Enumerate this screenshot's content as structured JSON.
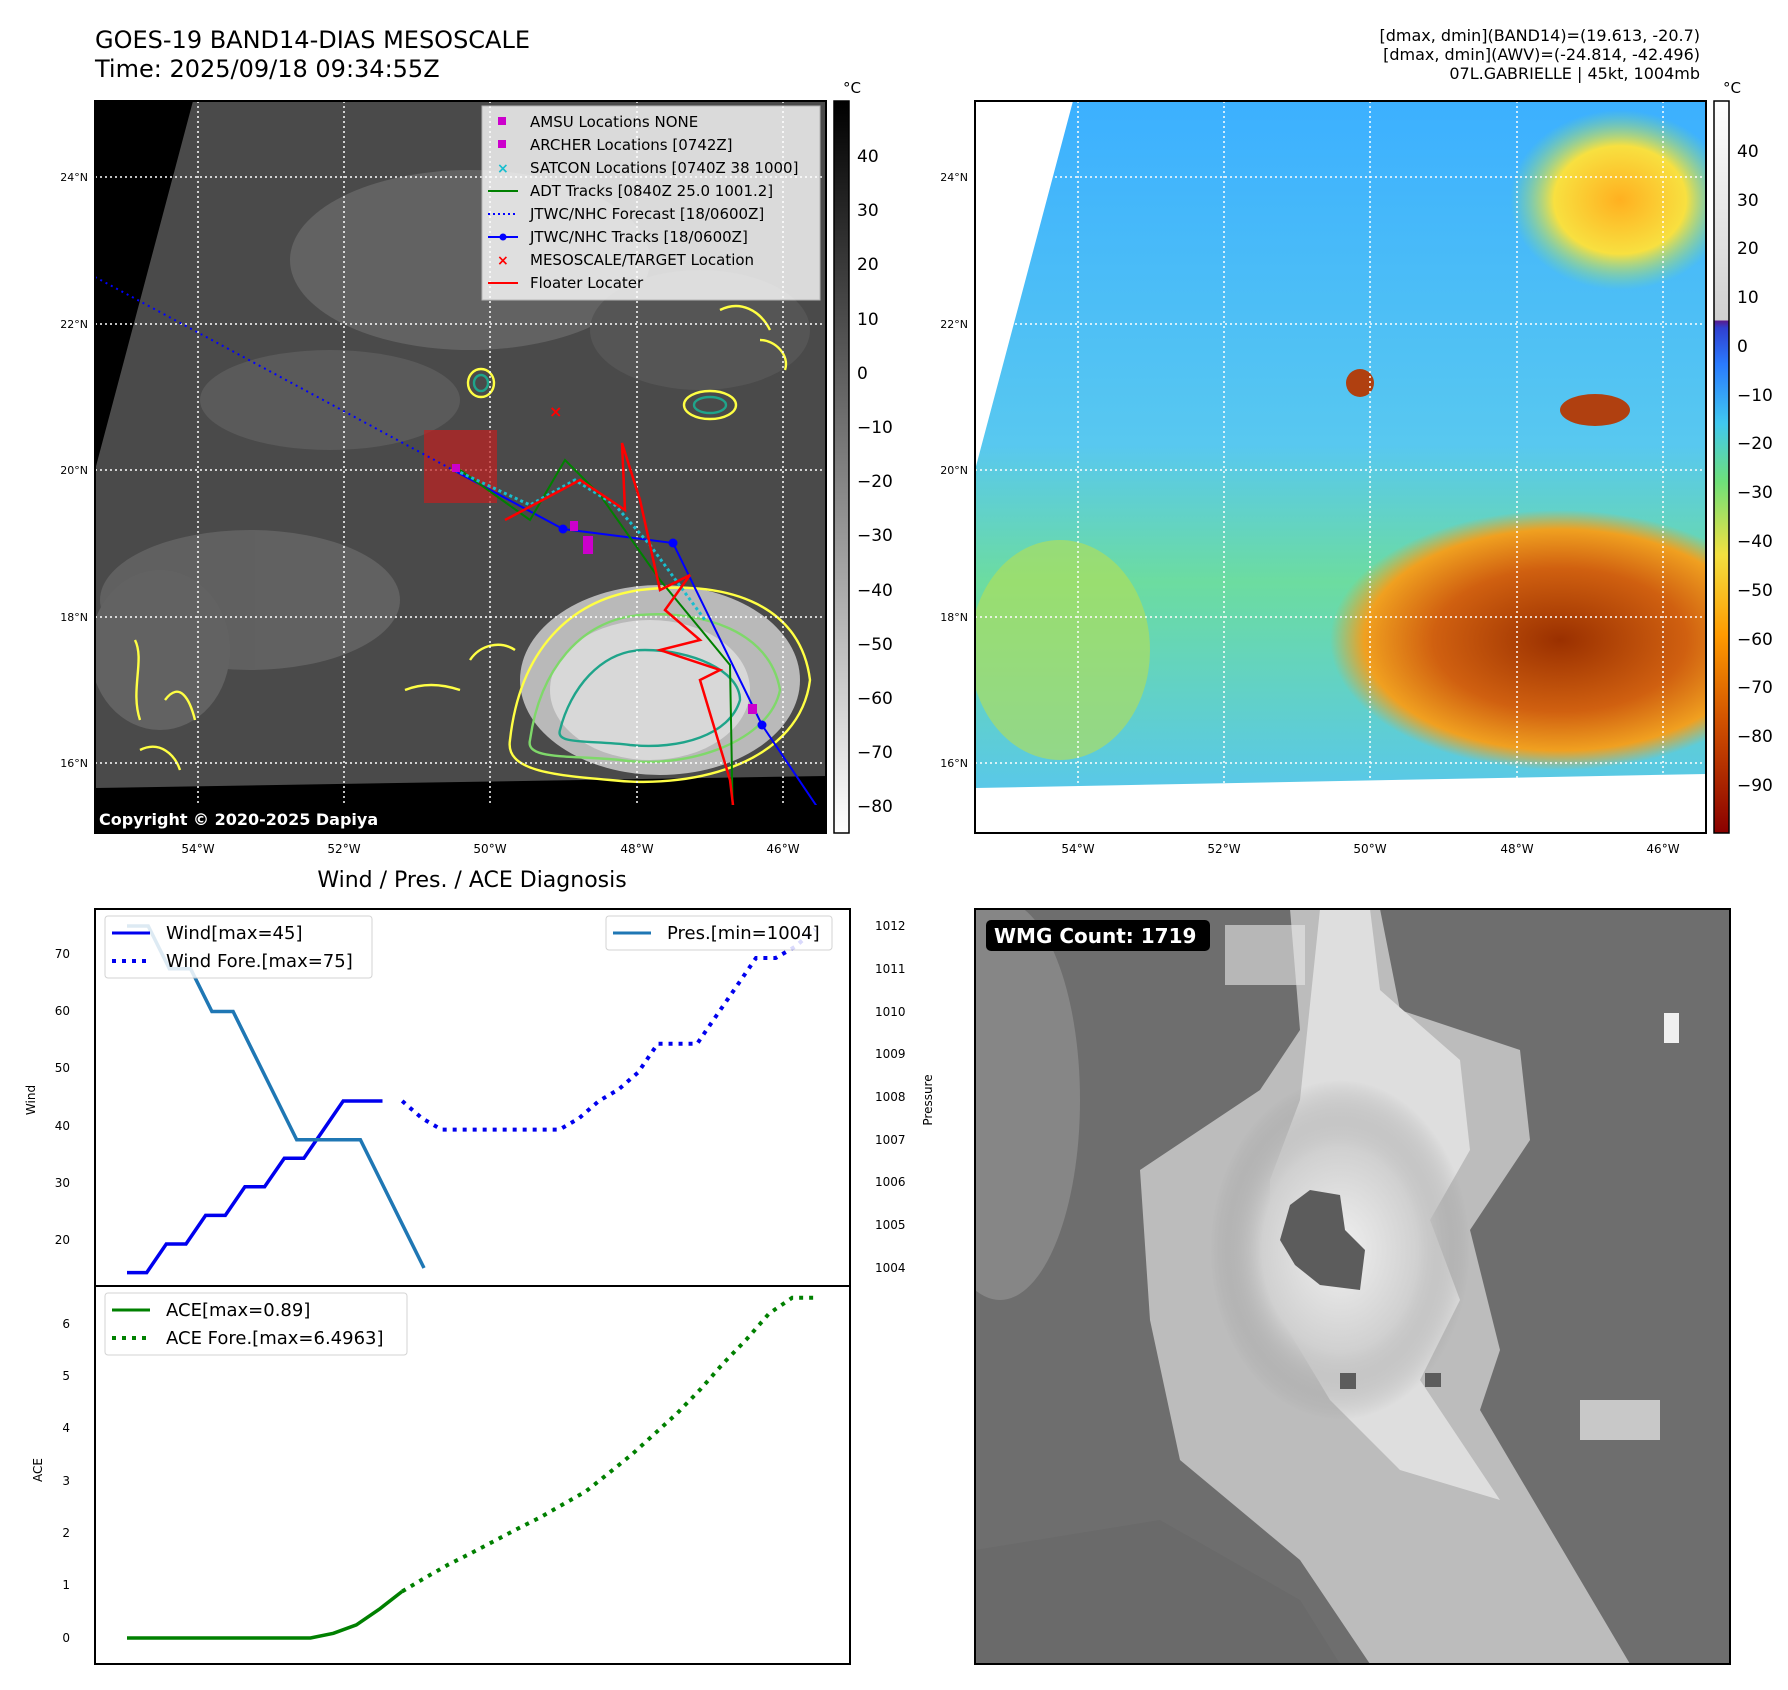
{
  "header": {
    "title_line1": "GOES-19 BAND14-DIAS MESOSCALE",
    "title_line2": "Time: 2025/09/18 09:34:55Z",
    "info_line1": "[dmax, dmin](BAND14)=(19.613, -20.7)",
    "info_line2": "[dmax, dmin](AWV)=(-24.814, -42.496)",
    "info_line3": "07L.GABRIELLE | 45kt, 1004mb"
  },
  "map_ir": {
    "copyright": "Copyright © 2020-2025 Dapiya",
    "lat_labels": [
      "24°N",
      "22°N",
      "20°N",
      "18°N",
      "16°N"
    ],
    "lon_labels": [
      "54°W",
      "52°W",
      "50°W",
      "48°W",
      "46°W"
    ],
    "colorbar_unit": "°C",
    "colorbar_ticks": [
      "40",
      "30",
      "20",
      "10",
      "0",
      "−10",
      "−20",
      "−30",
      "−40",
      "−50",
      "−60",
      "−70",
      "−80"
    ],
    "legend": [
      {
        "label": "AMSU Locations NONE",
        "color": "#cc00cc"
      },
      {
        "label": "ARCHER Locations [0742Z]",
        "color": "#cc00cc"
      },
      {
        "label": "SATCON Locations [0740Z 38 1000]",
        "color": "#17becf"
      },
      {
        "label": "ADT Tracks [0840Z 25.0 1001.2]",
        "color": "#008000"
      },
      {
        "label": "JTWC/NHC Forecast [18/0600Z]",
        "color": "#0000ff"
      },
      {
        "label": "JTWC/NHC Tracks [18/0600Z]",
        "color": "#0000ff"
      },
      {
        "label": "MESOSCALE/TARGET Location",
        "color": "#ff0000"
      },
      {
        "label": "Floater Locater",
        "color": "#ff0000"
      }
    ]
  },
  "map_wv": {
    "lat_labels": [
      "24°N",
      "22°N",
      "20°N",
      "18°N",
      "16°N"
    ],
    "lon_labels": [
      "54°W",
      "52°W",
      "50°W",
      "48°W",
      "46°W"
    ],
    "colorbar_unit": "°C",
    "colorbar_ticks": [
      "40",
      "30",
      "20",
      "10",
      "0",
      "−10",
      "−20",
      "−30",
      "−40",
      "−50",
      "−60",
      "−70",
      "−80",
      "−90"
    ]
  },
  "diagnosis": {
    "title": "Wind / Pres. / ACE Diagnosis",
    "wind_ylabel": "Wind",
    "pres_ylabel": "Pressure",
    "ace_ylabel": "ACE",
    "wind_ticks": [
      "70",
      "60",
      "50",
      "40",
      "30",
      "20"
    ],
    "pres_ticks": [
      "1012",
      "1011",
      "1010",
      "1009",
      "1008",
      "1007",
      "1006",
      "1005",
      "1004"
    ],
    "ace_ticks": [
      "6",
      "5",
      "4",
      "3",
      "2",
      "1",
      "0"
    ],
    "legend_wind": "Wind[max=45]",
    "legend_wind_fore": "Wind Fore.[max=75]",
    "legend_pres": "Pres.[min=1004]",
    "legend_ace": "ACE[max=0.89]",
    "legend_ace_fore": "ACE Fore.[max=6.4963]"
  },
  "wmg": {
    "label": "WMG Count: 1719"
  },
  "chart_data": [
    {
      "type": "line",
      "title": "Wind / Pres. / ACE Diagnosis",
      "ylabel": "Wind",
      "ylim": [
        12,
        77
      ],
      "x": [
        0,
        1,
        2,
        3,
        4,
        5,
        6,
        7,
        8,
        9,
        10,
        11,
        12,
        13,
        14,
        15
      ],
      "series": [
        {
          "name": "Wind[max=45]",
          "color": "#0000ee",
          "style": "solid",
          "values": [
            15,
            15,
            20,
            20,
            25,
            25,
            30,
            30,
            35,
            35,
            40,
            45,
            45,
            45,
            null,
            null
          ]
        },
        {
          "name": "Wind Fore.[max=75]",
          "color": "#0000ee",
          "style": "dotted",
          "x": [
            14,
            15,
            16,
            17,
            18,
            19,
            20,
            21,
            22,
            23,
            24,
            25,
            26,
            27,
            28,
            29,
            30,
            31,
            32,
            33,
            34,
            35
          ],
          "values": [
            45,
            42,
            40,
            40,
            40,
            40,
            40,
            40,
            40,
            42,
            45,
            47,
            50,
            55,
            55,
            55,
            60,
            65,
            70,
            70,
            72,
            75
          ]
        }
      ]
    },
    {
      "type": "line",
      "ylabel": "Pressure",
      "ylim": [
        1003.7,
        1012.3
      ],
      "x": [
        0,
        1,
        2,
        3,
        4,
        5,
        6,
        7,
        8,
        9,
        10,
        11,
        12,
        13,
        14
      ],
      "series": [
        {
          "name": "Pres.[min=1004]",
          "color": "#1f77b4",
          "style": "solid",
          "values": [
            1012,
            1012,
            1011,
            1011,
            1010,
            1010,
            1009,
            1008,
            1007,
            1007,
            1007,
            1007,
            1006,
            1005,
            1004
          ]
        }
      ]
    },
    {
      "type": "line",
      "ylabel": "ACE",
      "ylim": [
        -0.3,
        6.8
      ],
      "x": [
        0,
        14,
        28,
        41
      ],
      "series": [
        {
          "name": "ACE[max=0.89]",
          "color": "#008000",
          "style": "solid",
          "x": [
            0,
            2,
            4,
            6,
            8,
            10,
            12,
            14,
            16,
            18,
            20,
            22,
            24
          ],
          "values": [
            0,
            0,
            0,
            0,
            0,
            0,
            0,
            0,
            0,
            0.09,
            0.25,
            0.55,
            0.89
          ]
        },
        {
          "name": "ACE Fore.[max=6.4963]",
          "color": "#008000",
          "style": "dotted",
          "x": [
            24,
            26,
            28,
            30,
            32,
            34,
            36,
            38,
            40,
            42,
            44,
            46,
            48,
            50,
            52,
            54,
            56,
            58,
            60
          ],
          "values": [
            0.89,
            1.15,
            1.4,
            1.62,
            1.85,
            2.08,
            2.3,
            2.55,
            2.8,
            3.15,
            3.5,
            3.9,
            4.3,
            4.75,
            5.25,
            5.7,
            6.2,
            6.5,
            6.5
          ]
        }
      ]
    }
  ]
}
